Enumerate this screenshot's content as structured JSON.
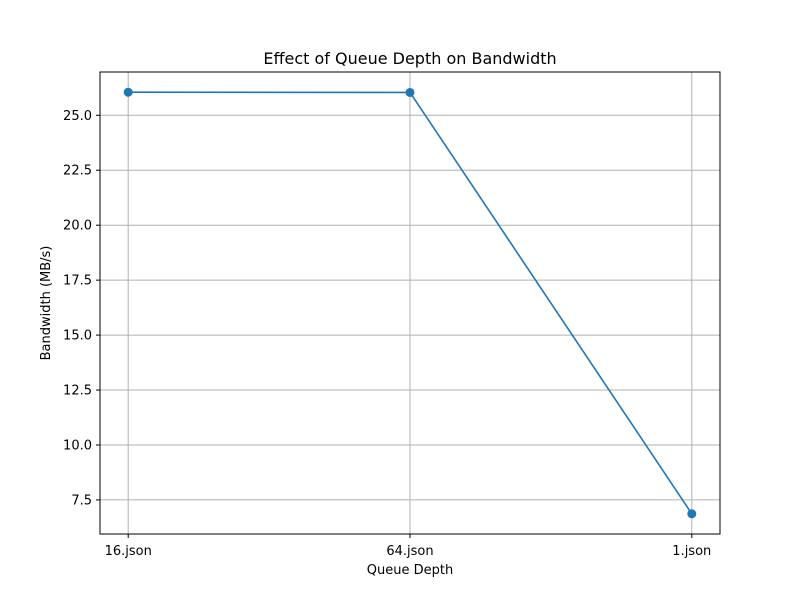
{
  "chart_data": {
    "type": "line",
    "title": "Effect of Queue Depth on Bandwidth",
    "xlabel": "Queue Depth",
    "ylabel": "Bandwidth (MB/s)",
    "categories": [
      "16.json",
      "64.json",
      "1.json"
    ],
    "series": [
      {
        "values": [
          26.05,
          26.04,
          6.87
        ],
        "color": "#1f77b4"
      }
    ],
    "ylim": [
      5.95,
      26.97
    ],
    "yticks": [
      7.5,
      10.0,
      12.5,
      15.0,
      17.5,
      20.0,
      22.5,
      25.0
    ],
    "ytick_labels": [
      "7.5",
      "10.0",
      "12.5",
      "15.0",
      "17.5",
      "20.0",
      "22.5",
      "25.0"
    ],
    "grid": true,
    "marker": "circle"
  }
}
